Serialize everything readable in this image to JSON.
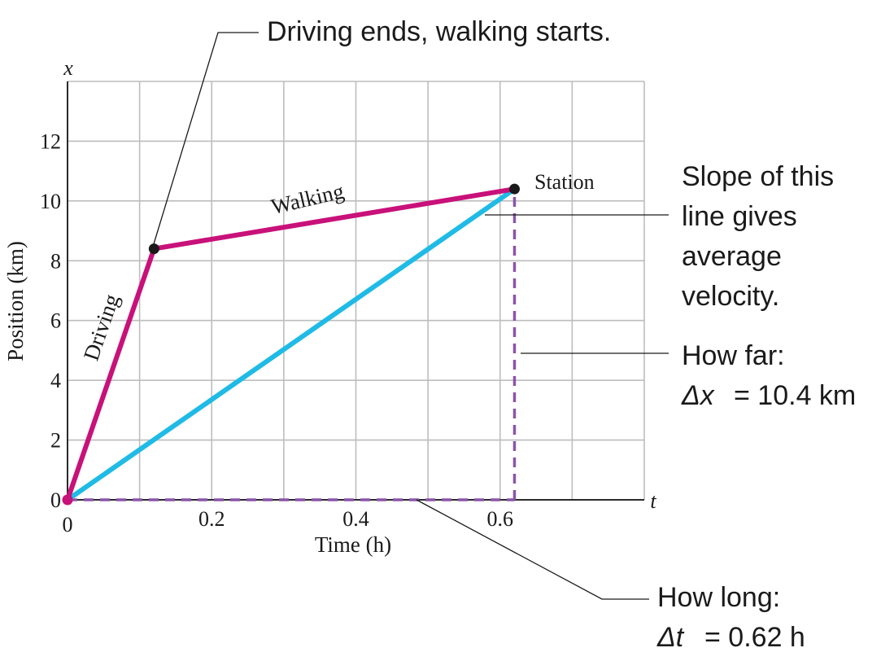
{
  "chart_data": {
    "type": "line",
    "title": "",
    "xlabel": "Time (h)",
    "ylabel": "Position (km)",
    "x_axis_symbol": "t",
    "y_axis_symbol": "x",
    "xlim": [
      0,
      0.8
    ],
    "ylim": [
      0,
      14
    ],
    "x_ticks": [
      0,
      0.2,
      0.4,
      0.6
    ],
    "x_tick_labels": [
      "0",
      "0.2",
      "0.4",
      "0.6"
    ],
    "y_ticks": [
      0,
      2,
      4,
      6,
      8,
      10,
      12
    ],
    "y_tick_labels": [
      "0",
      "2",
      "4",
      "6",
      "8",
      "10",
      "12"
    ],
    "grid": true,
    "series": [
      {
        "name": "",
        "color": "#c8117a",
        "points": [
          [
            0,
            0
          ],
          [
            0.12,
            8.4
          ],
          [
            0.62,
            10.4
          ]
        ]
      },
      {
        "name": "",
        "color": "#1fbbe6",
        "points": [
          [
            0,
            0
          ],
          [
            0.62,
            10.4
          ]
        ]
      }
    ],
    "measure_lines": {
      "color": "#8a55a8",
      "horizontal": [
        [
          0,
          0
        ],
        [
          0.62,
          0
        ]
      ],
      "vertical": [
        [
          0.62,
          0
        ],
        [
          0.62,
          10.4
        ]
      ]
    },
    "points": [
      {
        "x": 0,
        "y": 0,
        "color": "#c8117a"
      },
      {
        "x": 0.12,
        "y": 8.4,
        "color": "#1a1a1a"
      },
      {
        "x": 0.62,
        "y": 10.4,
        "color": "#1a1a1a"
      }
    ],
    "segment_labels": {
      "driving": "Driving",
      "walking": "Walking",
      "station": "Station"
    },
    "annotations": {
      "driving_ends": "Driving ends, walking starts.",
      "slope": [
        "Slope of this",
        "line gives",
        "average",
        "velocity."
      ],
      "how_far": {
        "line1": "How far:",
        "symbol": "Δx",
        "value": "= 10.4 km"
      },
      "how_long": {
        "line1": "How long:",
        "symbol": "Δt",
        "value": "= 0.62 h"
      }
    }
  }
}
